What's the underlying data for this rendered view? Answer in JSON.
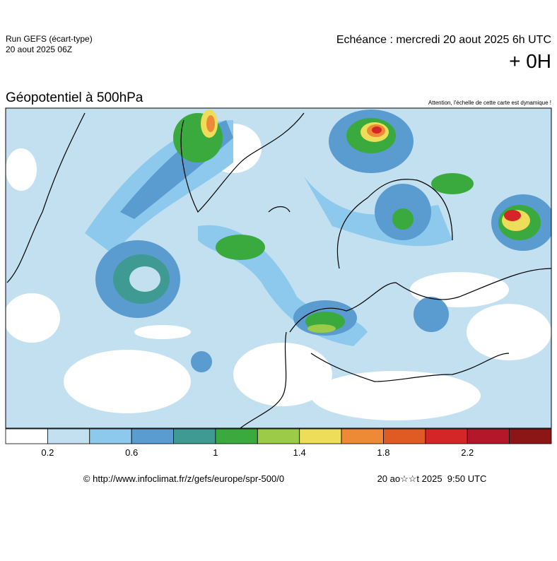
{
  "header": {
    "run": "Run GEFS (écart-type)",
    "date": "20 aout 2025 06Z",
    "echeance": "Echéance : mercredi 20 aout 2025 6h UTC",
    "offset": "+ 0H"
  },
  "map": {
    "title": "Géopotentiel à 500hPa",
    "note": "Attention, l'échelle de cette carte est dynamique !"
  },
  "colorbar": {
    "colors": [
      "#ffffff",
      "#c2e0ef",
      "#8cc9ec",
      "#5a9bd0",
      "#409a94",
      "#3aaa3e",
      "#9ccb47",
      "#eddd58",
      "#ee8a35",
      "#e05a24",
      "#d42626",
      "#b4162a",
      "#8c1616"
    ],
    "labels": [
      "0.2",
      "0.6",
      "1",
      "1.4",
      "1.8",
      "2.2"
    ]
  },
  "footer": {
    "url": "© http://www.infoclimat.fr/z/gefs/europe/spr-500/0",
    "timestamp": "20 ao☆☆t 2025  9:50 UTC"
  }
}
